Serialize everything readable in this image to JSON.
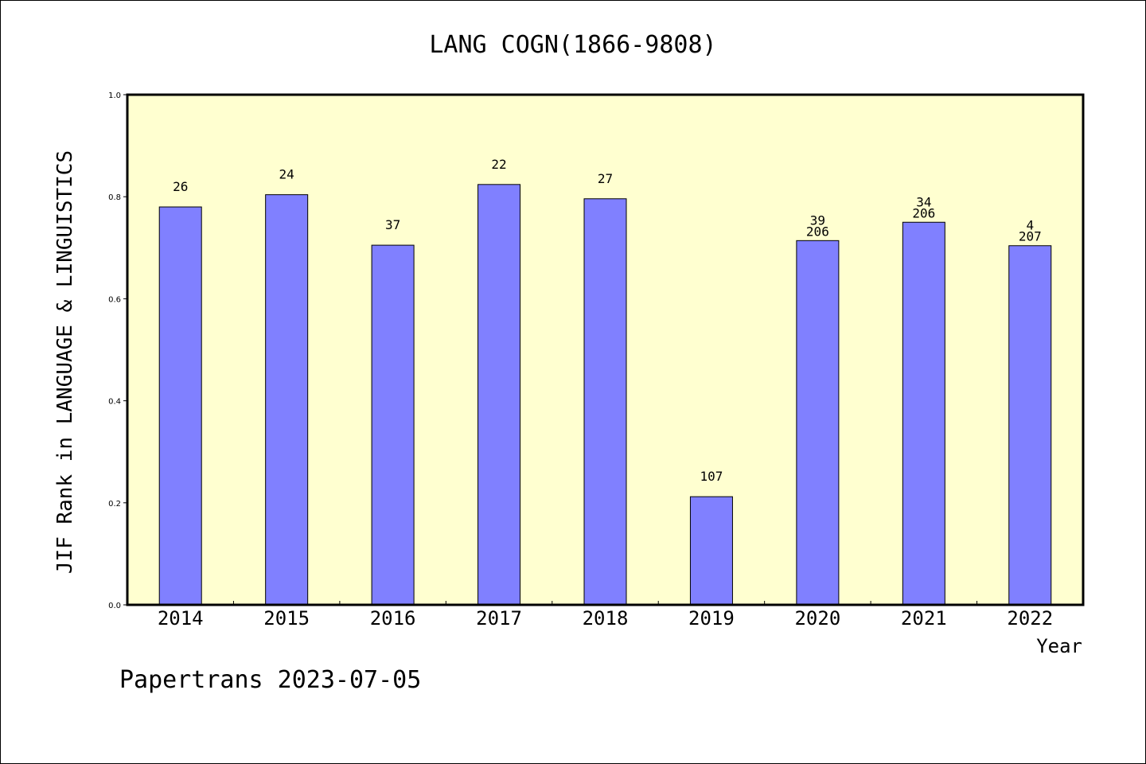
{
  "chart_data": {
    "type": "bar",
    "title": "LANG COGN(1866-9808)",
    "ylabel": "JIF Rank in LANGUAGE & LINGUISTICS",
    "xlabel": "Year",
    "categories": [
      "2014",
      "2015",
      "2016",
      "2017",
      "2018",
      "2019",
      "2020",
      "2021",
      "2022"
    ],
    "values": [
      0.78,
      0.804,
      0.705,
      0.824,
      0.796,
      0.212,
      0.714,
      0.75,
      0.704
    ],
    "data_labels": [
      [
        "26"
      ],
      [
        "24"
      ],
      [
        "37"
      ],
      [
        "22"
      ],
      [
        "27"
      ],
      [
        "107"
      ],
      [
        "39",
        "206"
      ],
      [
        "34",
        "206"
      ],
      [
        "4",
        "207"
      ]
    ],
    "ylim": [
      0,
      1.0
    ],
    "yticks": [
      "0.0",
      "0.2",
      "0.4",
      "0.6",
      "0.8",
      "1.0"
    ],
    "ytick_values": [
      0,
      0.2,
      0.4,
      0.6,
      0.8,
      1.0
    ],
    "grid": false,
    "colors": {
      "bar": "#8080ff",
      "plot_background": "#ffffd0",
      "axis": "#000000"
    }
  },
  "footer": "Papertrans 2023-07-05"
}
